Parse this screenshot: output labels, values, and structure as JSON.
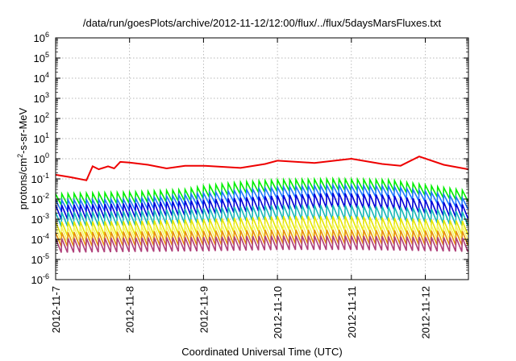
{
  "chart_data": {
    "type": "line",
    "title": "/data/run/goesPlots/archive/2012-11-12/12:00/flux/../flux/5daysMarsFluxes.txt",
    "xlabel": "Coordinated Universal Time (UTC)",
    "ylabel": "protons/cm²-s-sr-MeV",
    "ylabel_parts": {
      "before": "protons/cm",
      "sup": "2",
      "after": "-s-sr-MeV"
    },
    "yscale": "log",
    "ylim_exponent": [
      -6,
      6
    ],
    "ytick_exponents": [
      -6,
      -5,
      -4,
      -3,
      -2,
      -1,
      0,
      1,
      2,
      3,
      4,
      5,
      6
    ],
    "ytick_base": "10",
    "xlim_days": [
      "2012-11-07",
      "2012-11-12 14:00"
    ],
    "xticks": [
      "2012-11-7",
      "2012-11-8",
      "2012-11-9",
      "2012-11-10",
      "2012-11-11",
      "2012-11-12"
    ],
    "grid": true,
    "series": [
      {
        "color": "#ee0000",
        "points": [
          [
            "2012-11-07 00:00",
            0.16
          ],
          [
            "2012-11-07 05:00",
            0.12
          ],
          [
            "2012-11-07 10:00",
            0.085
          ],
          [
            "2012-11-07 12:00",
            0.42
          ],
          [
            "2012-11-07 14:00",
            0.3
          ],
          [
            "2012-11-07 17:00",
            0.42
          ],
          [
            "2012-11-07 19:00",
            0.33
          ],
          [
            "2012-11-07 21:00",
            0.7
          ],
          [
            "2012-11-08 00:00",
            0.65
          ],
          [
            "2012-11-08 06:00",
            0.5
          ],
          [
            "2012-11-08 12:00",
            0.33
          ],
          [
            "2012-11-08 18:00",
            0.45
          ],
          [
            "2012-11-09 00:00",
            0.45
          ],
          [
            "2012-11-09 12:00",
            0.35
          ],
          [
            "2012-11-09 20:00",
            0.55
          ],
          [
            "2012-11-10 00:00",
            0.8
          ],
          [
            "2012-11-10 12:00",
            0.62
          ],
          [
            "2012-11-11 00:00",
            1.0
          ],
          [
            "2012-11-11 10:00",
            0.55
          ],
          [
            "2012-11-11 16:00",
            0.45
          ],
          [
            "2012-11-11 22:00",
            1.3
          ],
          [
            "2012-11-12 06:00",
            0.5
          ],
          [
            "2012-11-12 14:00",
            0.3
          ]
        ]
      },
      {
        "color": "#00ee00",
        "points": [
          [
            "2012-11-07 00:00",
            0.018
          ],
          [
            "2012-11-08 00:00",
            0.022
          ],
          [
            "2012-11-08 18:00",
            0.03
          ],
          [
            "2012-11-09 00:00",
            0.045
          ],
          [
            "2012-11-09 12:00",
            0.07
          ],
          [
            "2012-11-10 00:00",
            0.09
          ],
          [
            "2012-11-10 18:00",
            0.1
          ],
          [
            "2012-11-11 12:00",
            0.09
          ],
          [
            "2012-11-12 00:00",
            0.05
          ],
          [
            "2012-11-12 14:00",
            0.025
          ]
        ]
      },
      {
        "color": "#1e78ff",
        "points": [
          [
            "2012-11-07 00:00",
            0.009
          ],
          [
            "2012-11-08 00:00",
            0.01
          ],
          [
            "2012-11-09 00:00",
            0.02
          ],
          [
            "2012-11-10 00:00",
            0.04
          ],
          [
            "2012-11-10 18:00",
            0.05
          ],
          [
            "2012-11-11 12:00",
            0.045
          ],
          [
            "2012-11-12 00:00",
            0.025
          ],
          [
            "2012-11-12 14:00",
            0.01
          ]
        ]
      },
      {
        "color": "#0000d8",
        "points": [
          [
            "2012-11-07 00:00",
            0.005
          ],
          [
            "2012-11-08 00:00",
            0.006
          ],
          [
            "2012-11-09 00:00",
            0.009
          ],
          [
            "2012-11-10 00:00",
            0.015
          ],
          [
            "2012-11-10 18:00",
            0.02
          ],
          [
            "2012-11-11 12:00",
            0.016
          ],
          [
            "2012-11-12 00:00",
            0.009
          ],
          [
            "2012-11-12 14:00",
            0.005
          ]
        ]
      },
      {
        "color": "#18b8b8",
        "points": [
          [
            "2012-11-07 00:00",
            0.0022
          ],
          [
            "2012-11-08 00:00",
            0.0025
          ],
          [
            "2012-11-09 00:00",
            0.0035
          ],
          [
            "2012-11-10 00:00",
            0.005
          ],
          [
            "2012-11-11 00:00",
            0.005
          ],
          [
            "2012-11-12 00:00",
            0.0035
          ],
          [
            "2012-11-12 14:00",
            0.0022
          ]
        ]
      },
      {
        "color": "#e6e600",
        "points": [
          [
            "2012-11-07 00:00",
            0.00075
          ],
          [
            "2012-11-08 00:00",
            0.0008
          ],
          [
            "2012-11-09 00:00",
            0.001
          ],
          [
            "2012-11-10 00:00",
            0.0014
          ],
          [
            "2012-11-11 00:00",
            0.0014
          ],
          [
            "2012-11-12 00:00",
            0.001
          ],
          [
            "2012-11-12 14:00",
            0.0008
          ]
        ]
      },
      {
        "color": "#f6f66a",
        "points": [
          [
            "2012-11-07 00:00",
            0.0004
          ],
          [
            "2012-11-09 00:00",
            0.0005
          ],
          [
            "2012-11-10 00:00",
            0.0006
          ],
          [
            "2012-11-11 00:00",
            0.0006
          ],
          [
            "2012-11-12 14:00",
            0.00045
          ]
        ]
      },
      {
        "color": "#e8920a",
        "points": [
          [
            "2012-11-07 00:00",
            0.00022
          ],
          [
            "2012-11-09 00:00",
            0.00026
          ],
          [
            "2012-11-10 00:00",
            0.0003
          ],
          [
            "2012-11-11 00:00",
            0.0003
          ],
          [
            "2012-11-12 14:00",
            0.00025
          ]
        ]
      },
      {
        "color": "#b0407a",
        "points": [
          [
            "2012-11-07 00:00",
            0.00011
          ],
          [
            "2012-11-09 00:00",
            0.00013
          ],
          [
            "2012-11-10 00:00",
            0.00015
          ],
          [
            "2012-11-11 00:00",
            0.00015
          ],
          [
            "2012-11-12 14:00",
            0.00012
          ]
        ]
      }
    ]
  },
  "colors": {
    "axis": "#000000",
    "grid": "#a0a0a0",
    "background": "#ffffff"
  }
}
